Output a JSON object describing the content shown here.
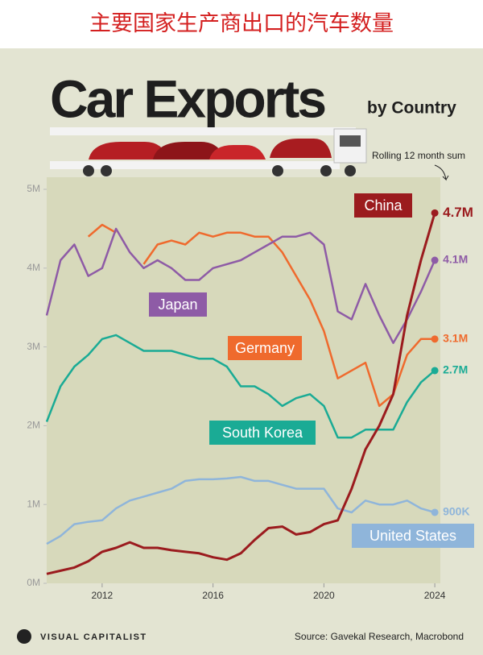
{
  "header": {
    "title": "主要国家生产商出口的汽车数量"
  },
  "chart_data": {
    "type": "line",
    "title": "Car Exports",
    "subtitle": "by Country",
    "annotation": "Rolling 12 month sum",
    "source": "Source: Gavekal Research, Macrobond",
    "brand": "VISUAL CAPITALIST",
    "x": [
      2010,
      2010.5,
      2011,
      2011.5,
      2012,
      2012.5,
      2013,
      2013.5,
      2014,
      2014.5,
      2015,
      2015.5,
      2016,
      2016.5,
      2017,
      2017.5,
      2018,
      2018.5,
      2019,
      2019.5,
      2020,
      2020.5,
      2021,
      2021.5,
      2022,
      2022.5,
      2023,
      2023.5,
      2024
    ],
    "xlim": [
      2010,
      2024.2
    ],
    "xticks": [
      2012,
      2016,
      2020,
      2024
    ],
    "ylim": [
      0,
      5
    ],
    "yticks": [
      {
        "value": 0,
        "label": "0M"
      },
      {
        "value": 1,
        "label": "1M"
      },
      {
        "value": 2,
        "label": "2M"
      },
      {
        "value": 3,
        "label": "3M"
      },
      {
        "value": 4,
        "label": "4M"
      },
      {
        "value": 5,
        "label": "5M"
      }
    ],
    "grid": false,
    "series": [
      {
        "name": "China",
        "color": "#9b1b1e",
        "end_label": "4.7M",
        "values": [
          0.12,
          0.16,
          0.2,
          0.28,
          0.4,
          0.45,
          0.52,
          0.45,
          0.45,
          0.42,
          0.4,
          0.38,
          0.33,
          0.3,
          0.38,
          0.55,
          0.7,
          0.72,
          0.62,
          0.65,
          0.75,
          0.8,
          1.2,
          1.7,
          2.0,
          2.4,
          3.4,
          4.1,
          4.7
        ]
      },
      {
        "name": "Japan",
        "color": "#8e5ba6",
        "end_label": "4.1M",
        "values": [
          3.4,
          4.1,
          4.3,
          3.9,
          4.0,
          4.5,
          4.2,
          4.0,
          4.1,
          4.0,
          3.85,
          3.85,
          4.0,
          4.05,
          4.1,
          4.2,
          4.3,
          4.4,
          4.4,
          4.45,
          4.3,
          3.45,
          3.35,
          3.8,
          3.4,
          3.05,
          3.35,
          3.7,
          4.1
        ]
      },
      {
        "name": "Germany",
        "color": "#ef6a2d",
        "end_label": "3.1M",
        "values": [
          null,
          null,
          null,
          4.4,
          4.55,
          4.45,
          null,
          4.05,
          4.3,
          4.35,
          4.3,
          4.45,
          4.4,
          4.45,
          4.45,
          4.4,
          4.4,
          4.2,
          3.9,
          3.6,
          3.2,
          2.6,
          2.7,
          2.8,
          2.25,
          2.4,
          2.9,
          3.1,
          3.1
        ]
      },
      {
        "name": "South Korea",
        "color": "#1aab95",
        "end_label": "2.7M",
        "values": [
          2.05,
          2.5,
          2.75,
          2.9,
          3.1,
          3.15,
          3.05,
          2.95,
          2.95,
          2.95,
          2.9,
          2.85,
          2.85,
          2.75,
          2.5,
          2.5,
          2.4,
          2.25,
          2.35,
          2.4,
          2.25,
          1.85,
          1.85,
          1.95,
          1.95,
          1.95,
          2.3,
          2.55,
          2.7
        ]
      },
      {
        "name": "United States",
        "color": "#8fb5da",
        "end_label": "900K",
        "values": [
          0.5,
          0.6,
          0.75,
          0.78,
          0.8,
          0.95,
          1.05,
          1.1,
          1.15,
          1.2,
          1.3,
          1.32,
          1.32,
          1.33,
          1.35,
          1.3,
          1.3,
          1.25,
          1.2,
          1.2,
          1.2,
          0.95,
          0.9,
          1.05,
          1.0,
          1.0,
          1.05,
          0.95,
          0.9
        ]
      }
    ]
  }
}
